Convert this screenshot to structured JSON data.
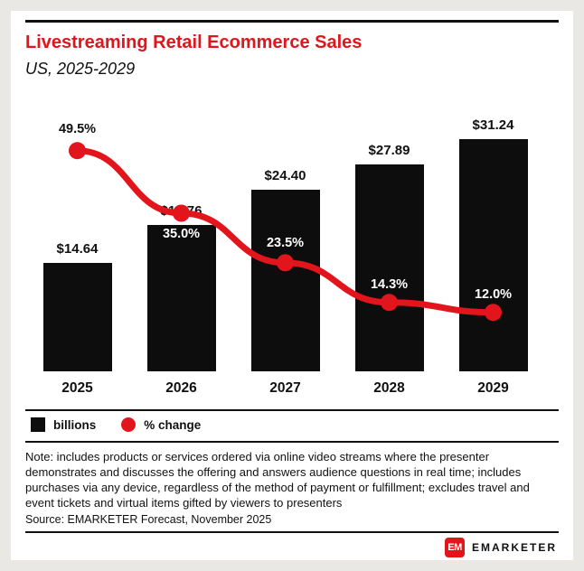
{
  "header": {
    "title": "Livestreaming Retail Ecommerce Sales",
    "subtitle": "US, 2025-2029"
  },
  "chart_data": {
    "type": "bar",
    "categories": [
      "2025",
      "2026",
      "2027",
      "2028",
      "2029"
    ],
    "series": [
      {
        "name": "billions",
        "type": "bar",
        "values": [
          14.64,
          19.76,
          24.4,
          27.89,
          31.24
        ],
        "labels": [
          "$14.64",
          "$19.76",
          "$24.40",
          "$27.89",
          "$31.24"
        ],
        "color": "#0d0d0d"
      },
      {
        "name": "% change",
        "type": "line",
        "values": [
          49.5,
          35.0,
          23.5,
          14.3,
          12.0
        ],
        "labels": [
          "49.5%",
          "35.0%",
          "23.5%",
          "14.3%",
          "12.0%"
        ],
        "color": "#e2141c"
      }
    ],
    "title": "Livestreaming Retail Ecommerce Sales",
    "xlabel": "",
    "ylabel": "billions",
    "legend_position": "bottom",
    "grid": false
  },
  "legend": {
    "bar_label": "billions",
    "line_label": "% change"
  },
  "note": "Note: includes products or services ordered via online video streams where the presenter demonstrates and discusses the offering and answers audience questions in real time; includes purchases via any device, regardless of the method of payment or fulfillment; excludes travel and event tickets and virtual items gifted by viewers to presenters",
  "source": "Source: EMARKETER Forecast, November 2025",
  "footer": {
    "logo_text": "EM",
    "brand": "EMARKETER"
  },
  "colors": {
    "accent": "#e2141c",
    "bar": "#0d0d0d",
    "background": "#eae8e4"
  }
}
